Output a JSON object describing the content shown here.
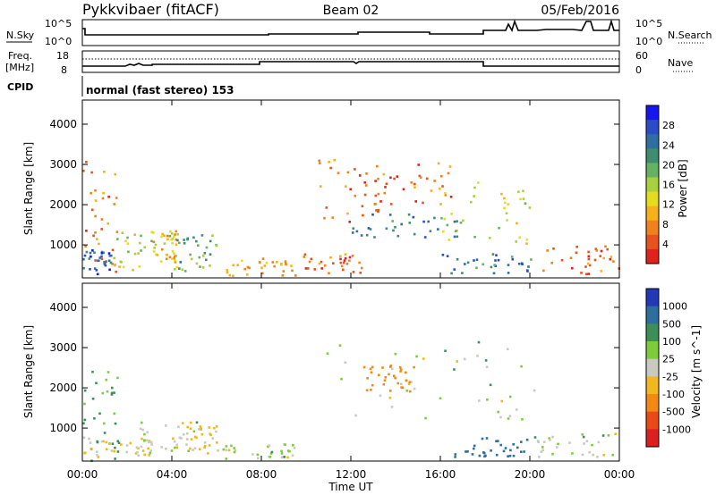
{
  "header": {
    "title": "Pykkvibaer (fitACF)",
    "beam": "Beam 02",
    "date": "05/Feb/2016"
  },
  "noise_panel": {
    "left_label": "N.Sky",
    "left_ticks": [
      "10^5",
      "10^0"
    ],
    "right_label": "N.Search",
    "right_ticks": [
      "10^5",
      "10^0"
    ]
  },
  "freq_panel": {
    "left_label_line1": "Freq.",
    "left_label_line2": "[MHz]",
    "left_ticks": [
      "18",
      "8"
    ],
    "right_label": "Nave",
    "right_ticks": [
      "60",
      "0"
    ]
  },
  "cpid": {
    "label": "CPID",
    "value": "normal (fast stereo) 153"
  },
  "chart_data": [
    {
      "type": "heatmap",
      "name": "Power",
      "ylabel": "Slant Range [km]",
      "yticks": [
        1000,
        2000,
        3000,
        4000
      ],
      "ylim": [
        180,
        4600
      ],
      "xlim_hours": [
        0,
        24
      ],
      "colorbar": {
        "label": "Power [dB]",
        "ticks": [
          "28",
          "24",
          "20",
          "16",
          "12",
          "8",
          "4"
        ],
        "colors": [
          "#1616ee",
          "#2a4cc4",
          "#2e6fa0",
          "#3f8c6e",
          "#66b264",
          "#a8cf3c",
          "#e6dc1e",
          "#f6b11a",
          "#f0821c",
          "#e8521c",
          "#e0221e"
        ]
      },
      "scatter_regions": [
        {
          "t": [
            0.0,
            1.6
          ],
          "r": [
            200,
            3100
          ],
          "value": 8
        },
        {
          "t": [
            0.0,
            1.3
          ],
          "r": [
            300,
            900
          ],
          "value": 26
        },
        {
          "t": [
            1.3,
            4.2
          ],
          "r": [
            400,
            1400
          ],
          "value": 16
        },
        {
          "t": [
            3.0,
            4.2
          ],
          "r": [
            600,
            1400
          ],
          "value": 12
        },
        {
          "t": [
            4.2,
            6.0
          ],
          "r": [
            350,
            1300
          ],
          "value": 20
        },
        {
          "t": [
            6.0,
            9.5
          ],
          "r": [
            250,
            700
          ],
          "value": 12
        },
        {
          "t": [
            9.8,
            12.5
          ],
          "r": [
            300,
            800
          ],
          "value": 8
        },
        {
          "t": [
            10.5,
            13.5
          ],
          "r": [
            1600,
            3200
          ],
          "value": 8
        },
        {
          "t": [
            12.0,
            17.0
          ],
          "r": [
            1200,
            1800
          ],
          "value": 24
        },
        {
          "t": [
            13.0,
            16.5
          ],
          "r": [
            2000,
            3100
          ],
          "value": 8
        },
        {
          "t": [
            16.0,
            20.0
          ],
          "r": [
            1000,
            2600
          ],
          "value": 16
        },
        {
          "t": [
            16.0,
            20.5
          ],
          "r": [
            300,
            800
          ],
          "value": 24
        },
        {
          "t": [
            20.5,
            24.0
          ],
          "r": [
            300,
            1000
          ],
          "value": 8
        }
      ]
    },
    {
      "type": "heatmap",
      "name": "Velocity",
      "ylabel": "Slant Range [km]",
      "yticks": [
        1000,
        2000,
        3000,
        4000
      ],
      "ylim": [
        180,
        4600
      ],
      "xlabel": "Time UT",
      "xticks": [
        "00:00",
        "04:00",
        "08:00",
        "12:00",
        "16:00",
        "20:00",
        "00:00"
      ],
      "xlim_hours": [
        0,
        24
      ],
      "colorbar": {
        "label": "Velocity [m s^-1]",
        "ticks": [
          "1000",
          "500",
          "100",
          "25",
          "-25",
          "-100",
          "-500",
          "-1000"
        ],
        "colors": [
          "#2238b8",
          "#2e6e9e",
          "#3e8e5a",
          "#7ecb3c",
          "#c9c9c0",
          "#f0b81c",
          "#f28a12",
          "#ea4a18",
          "#dd1f22"
        ]
      },
      "scatter_regions": [
        {
          "t": [
            0.0,
            1.6
          ],
          "r": [
            200,
            2600
          ],
          "value": 100
        },
        {
          "t": [
            0.0,
            3.0
          ],
          "r": [
            300,
            800
          ],
          "value": -100
        },
        {
          "t": [
            2.0,
            5.5
          ],
          "r": [
            400,
            1200
          ],
          "value": 0
        },
        {
          "t": [
            4.0,
            6.0
          ],
          "r": [
            350,
            1200
          ],
          "value": -100
        },
        {
          "t": [
            6.0,
            9.5
          ],
          "r": [
            250,
            650
          ],
          "value": 0
        },
        {
          "t": [
            10.5,
            20.5
          ],
          "r": [
            1200,
            3200
          ],
          "value": 0
        },
        {
          "t": [
            12.5,
            14.8
          ],
          "r": [
            1800,
            2600
          ],
          "value": -500
        },
        {
          "t": [
            16.0,
            20.0
          ],
          "r": [
            300,
            800
          ],
          "value": 500
        },
        {
          "t": [
            20.0,
            24.0
          ],
          "r": [
            300,
            900
          ],
          "value": 0
        }
      ]
    }
  ]
}
